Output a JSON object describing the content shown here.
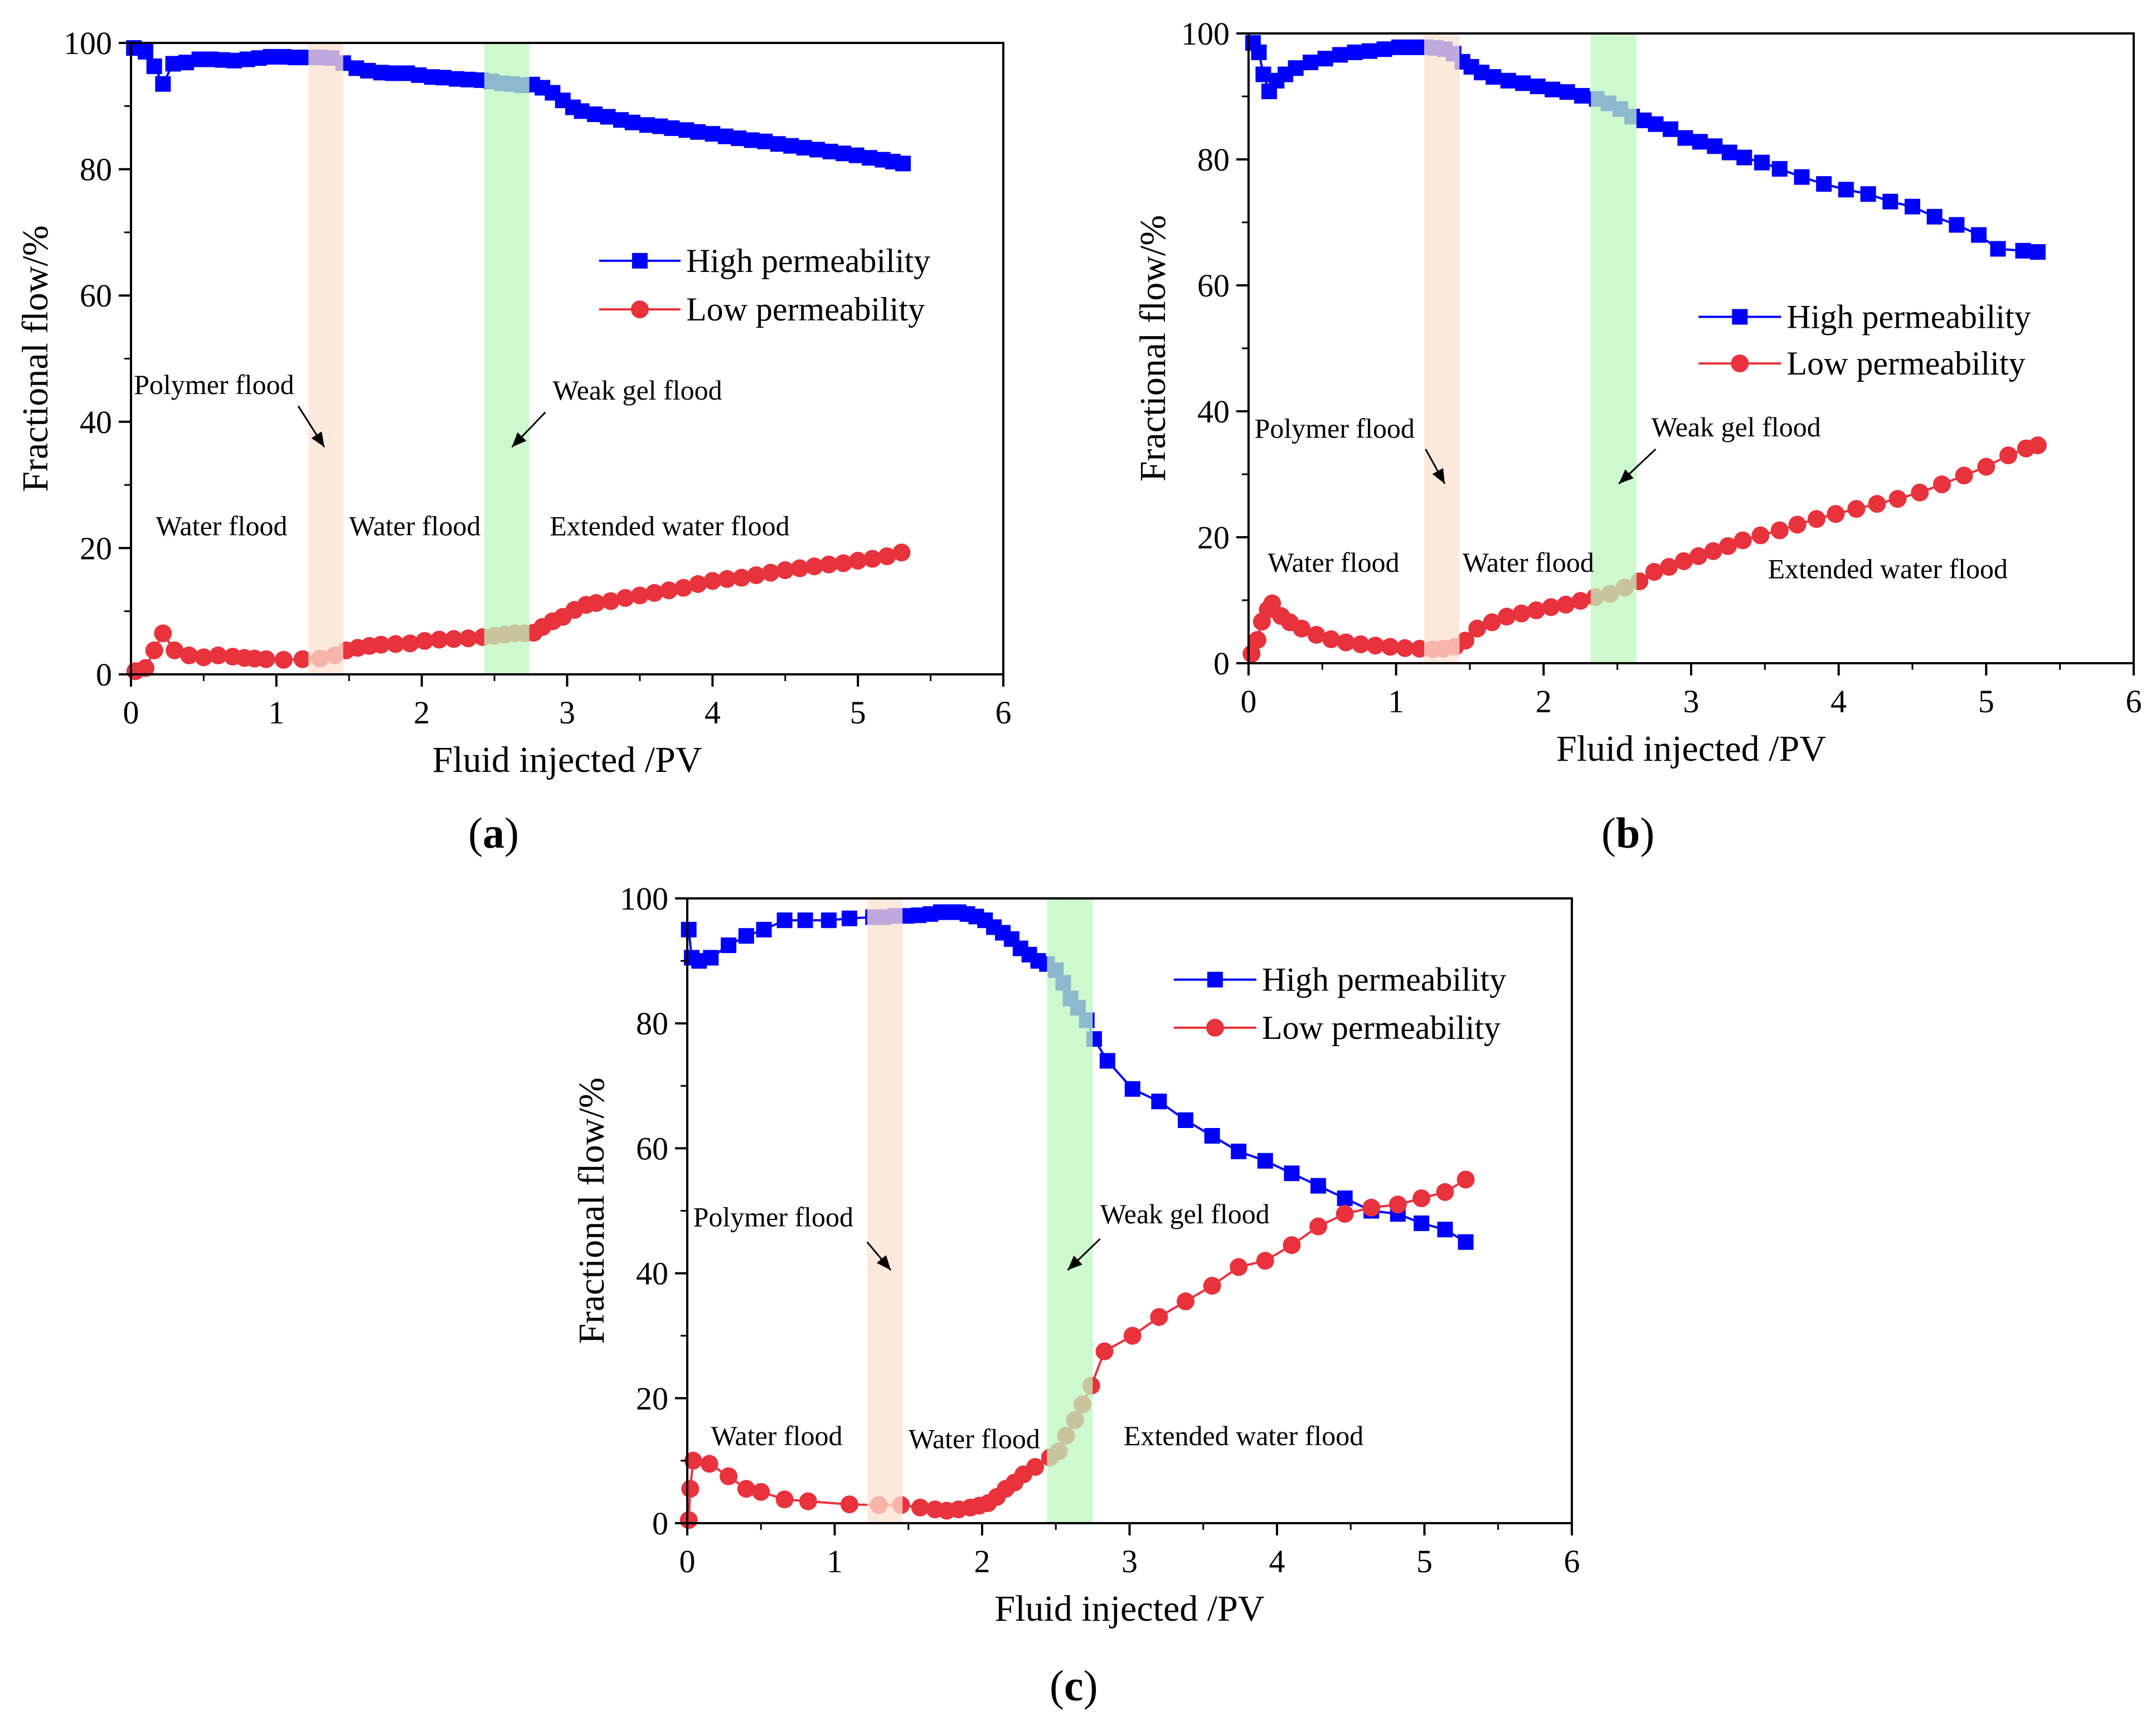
{
  "figure": {
    "colors": {
      "high": "#0000ff",
      "low": "#e8323c",
      "polymer_band": "#fce1d0",
      "gel_band": "#bdf5bd"
    },
    "legend": {
      "high": "High permeability",
      "low": "Low permeability"
    },
    "panels": [
      {
        "caption_letter": "a",
        "annotations": {
          "polymer": "Polymer flood",
          "gel": "Weak gel flood",
          "water1": "Water flood",
          "water2": "Water flood",
          "extended": "Extended water flood"
        }
      },
      {
        "caption_letter": "b",
        "annotations": {
          "polymer": "Polymer flood",
          "gel": "Weak gel flood",
          "water1": "Water flood",
          "water2": "Water flood",
          "extended": "Extended water flood"
        }
      },
      {
        "caption_letter": "c",
        "annotations": {
          "polymer": "Polymer flood",
          "gel": "Weak gel flood",
          "water1": "Water flood",
          "water2": "Water flood",
          "extended": "Extended water flood"
        }
      }
    ]
  },
  "chart_data": [
    {
      "type": "line",
      "xlabel": "Fluid injected /PV",
      "ylabel": "Fractional flow/%",
      "xlim": [
        0,
        6
      ],
      "ylim": [
        0,
        100
      ],
      "xticks": [
        0,
        1,
        2,
        3,
        4,
        5,
        6
      ],
      "yticks": [
        0,
        20,
        40,
        60,
        80,
        100
      ],
      "legend_position": "right",
      "bands": [
        {
          "name": "Polymer flood",
          "x": [
            1.22,
            1.46
          ]
        },
        {
          "name": "Weak gel flood",
          "x": [
            2.43,
            2.74
          ]
        }
      ],
      "series": [
        {
          "name": "High permeability",
          "marker": "square",
          "x": [
            0.02,
            0.1,
            0.16,
            0.22,
            0.29,
            0.38,
            0.47,
            0.55,
            0.63,
            0.71,
            0.8,
            0.88,
            0.96,
            1.05,
            1.13,
            1.21,
            1.3,
            1.38,
            1.46,
            1.55,
            1.63,
            1.72,
            1.8,
            1.9,
            1.98,
            2.07,
            2.15,
            2.24,
            2.32,
            2.41,
            2.48,
            2.55,
            2.62,
            2.69,
            2.76,
            2.83,
            2.9,
            2.97,
            3.04,
            3.1,
            3.19,
            3.28,
            3.37,
            3.45,
            3.55,
            3.64,
            3.72,
            3.82,
            3.9,
            4.0,
            4.09,
            4.18,
            4.27,
            4.36,
            4.45,
            4.54,
            4.63,
            4.72,
            4.81,
            4.9,
            4.99,
            5.08,
            5.17,
            5.24,
            5.31
          ],
          "y": [
            99.2,
            98.6,
            96.3,
            93.5,
            96.7,
            96.9,
            97.4,
            97.4,
            97.3,
            97.2,
            97.4,
            97.6,
            97.8,
            97.8,
            97.7,
            97.7,
            97.7,
            97.6,
            96.8,
            96.0,
            95.6,
            95.3,
            95.2,
            95.2,
            94.9,
            94.6,
            94.5,
            94.3,
            94.2,
            94.1,
            93.9,
            93.6,
            93.5,
            93.3,
            93.4,
            92.9,
            92.1,
            90.9,
            89.8,
            89.2,
            88.7,
            88.3,
            87.8,
            87.4,
            87.0,
            86.8,
            86.5,
            86.2,
            85.9,
            85.6,
            85.2,
            84.9,
            84.6,
            84.4,
            84.0,
            83.7,
            83.4,
            83.1,
            82.8,
            82.5,
            82.2,
            81.8,
            81.5,
            81.2,
            80.9
          ]
        },
        {
          "name": "Low permeability",
          "marker": "circle",
          "x": [
            0.03,
            0.1,
            0.16,
            0.22,
            0.3,
            0.4,
            0.5,
            0.6,
            0.7,
            0.78,
            0.85,
            0.93,
            1.05,
            1.18,
            1.3,
            1.4,
            1.48,
            1.56,
            1.64,
            1.72,
            1.82,
            1.92,
            2.02,
            2.12,
            2.22,
            2.32,
            2.42,
            2.5,
            2.57,
            2.64,
            2.71,
            2.77,
            2.83,
            2.9,
            2.97,
            3.05,
            3.13,
            3.2,
            3.3,
            3.4,
            3.5,
            3.6,
            3.7,
            3.8,
            3.9,
            4.0,
            4.1,
            4.2,
            4.3,
            4.4,
            4.5,
            4.6,
            4.7,
            4.8,
            4.9,
            5.0,
            5.1,
            5.2,
            5.3
          ],
          "y": [
            0.5,
            1.0,
            3.8,
            6.5,
            3.8,
            3.0,
            2.7,
            3.0,
            2.8,
            2.6,
            2.5,
            2.4,
            2.3,
            2.4,
            2.5,
            3.0,
            3.8,
            4.2,
            4.5,
            4.7,
            4.8,
            4.9,
            5.3,
            5.5,
            5.6,
            5.7,
            5.9,
            6.1,
            6.3,
            6.5,
            6.5,
            6.6,
            7.5,
            8.4,
            9.1,
            10.2,
            11.0,
            11.3,
            11.6,
            12.1,
            12.5,
            12.9,
            13.3,
            13.7,
            14.3,
            14.8,
            15.1,
            15.3,
            15.7,
            16.1,
            16.5,
            16.8,
            17.1,
            17.4,
            17.6,
            18.0,
            18.3,
            18.7,
            19.3
          ]
        }
      ]
    },
    {
      "type": "line",
      "xlabel": "Fluid injected /PV",
      "ylabel": "Fractional flow/%",
      "xlim": [
        0,
        6
      ],
      "ylim": [
        0,
        100
      ],
      "xticks": [
        0,
        1,
        2,
        3,
        4,
        5,
        6
      ],
      "yticks": [
        0,
        20,
        40,
        60,
        80,
        100
      ],
      "legend_position": "right",
      "bands": [
        {
          "name": "Polymer flood",
          "x": [
            1.19,
            1.43
          ]
        },
        {
          "name": "Weak gel flood",
          "x": [
            2.32,
            2.63
          ]
        }
      ],
      "series": [
        {
          "name": "High permeability",
          "marker": "square",
          "x": [
            0.03,
            0.07,
            0.1,
            0.14,
            0.19,
            0.25,
            0.32,
            0.42,
            0.52,
            0.62,
            0.72,
            0.82,
            0.92,
            1.02,
            1.12,
            1.2,
            1.27,
            1.33,
            1.39,
            1.45,
            1.51,
            1.58,
            1.66,
            1.76,
            1.86,
            1.96,
            2.06,
            2.16,
            2.26,
            2.36,
            2.44,
            2.52,
            2.6,
            2.68,
            2.76,
            2.86,
            2.96,
            3.06,
            3.16,
            3.26,
            3.36,
            3.48,
            3.6,
            3.75,
            3.9,
            4.05,
            4.2,
            4.35,
            4.5,
            4.65,
            4.8,
            4.95,
            5.08,
            5.25,
            5.35
          ],
          "y": [
            98.5,
            97.0,
            93.5,
            90.8,
            92.5,
            93.5,
            94.5,
            95.4,
            96.0,
            96.6,
            97.0,
            97.2,
            97.5,
            97.8,
            97.8,
            97.8,
            97.7,
            97.5,
            96.8,
            95.5,
            94.7,
            93.8,
            93.1,
            92.5,
            92.1,
            91.6,
            91.1,
            90.7,
            90.1,
            89.6,
            88.9,
            88.0,
            86.8,
            86.2,
            85.6,
            84.8,
            83.4,
            82.8,
            82.1,
            81.1,
            80.3,
            79.5,
            78.5,
            77.2,
            76.1,
            75.2,
            74.5,
            73.3,
            72.5,
            70.9,
            69.6,
            68.0,
            65.8,
            65.5,
            65.3
          ]
        },
        {
          "name": "Low permeability",
          "marker": "circle",
          "x": [
            0.02,
            0.06,
            0.09,
            0.13,
            0.16,
            0.22,
            0.28,
            0.36,
            0.46,
            0.56,
            0.66,
            0.76,
            0.86,
            0.96,
            1.06,
            1.16,
            1.25,
            1.32,
            1.4,
            1.47,
            1.55,
            1.65,
            1.75,
            1.85,
            1.95,
            2.05,
            2.15,
            2.25,
            2.35,
            2.45,
            2.55,
            2.65,
            2.75,
            2.85,
            2.95,
            3.05,
            3.15,
            3.25,
            3.35,
            3.47,
            3.6,
            3.72,
            3.85,
            3.98,
            4.12,
            4.26,
            4.4,
            4.55,
            4.7,
            4.85,
            5.0,
            5.15,
            5.27,
            5.35
          ],
          "y": [
            1.5,
            3.7,
            6.6,
            8.5,
            9.5,
            7.5,
            6.5,
            5.5,
            4.5,
            3.8,
            3.3,
            3.0,
            2.8,
            2.6,
            2.4,
            2.3,
            2.2,
            2.3,
            2.6,
            3.6,
            5.5,
            6.5,
            7.4,
            7.9,
            8.4,
            8.9,
            9.3,
            9.9,
            10.5,
            11.0,
            12.0,
            13.0,
            14.5,
            15.3,
            16.2,
            17.0,
            17.8,
            18.6,
            19.5,
            20.3,
            21.1,
            22.0,
            22.9,
            23.7,
            24.5,
            25.3,
            26.1,
            27.1,
            28.4,
            29.8,
            31.2,
            33.0,
            34.1,
            34.6
          ]
        }
      ]
    },
    {
      "type": "line",
      "xlabel": "Fluid injected /PV",
      "ylabel": "Fractional flow/%",
      "xlim": [
        0,
        6
      ],
      "ylim": [
        0,
        100
      ],
      "xticks": [
        0,
        1,
        2,
        3,
        4,
        5,
        6
      ],
      "yticks": [
        0,
        20,
        40,
        60,
        80,
        100
      ],
      "legend_position": "top-right",
      "bands": [
        {
          "name": "Polymer flood",
          "x": [
            1.22,
            1.46
          ]
        },
        {
          "name": "Weak gel flood",
          "x": [
            2.44,
            2.75
          ]
        }
      ],
      "series": [
        {
          "name": "High permeability",
          "marker": "square",
          "x": [
            0.01,
            0.03,
            0.08,
            0.16,
            0.28,
            0.4,
            0.52,
            0.66,
            0.8,
            0.96,
            1.1,
            1.26,
            1.33,
            1.41,
            1.49,
            1.57,
            1.65,
            1.72,
            1.78,
            1.84,
            1.9,
            1.96,
            2.02,
            2.08,
            2.14,
            2.2,
            2.26,
            2.32,
            2.38,
            2.44,
            2.5,
            2.55,
            2.6,
            2.65,
            2.71,
            2.76,
            2.85,
            3.02,
            3.2,
            3.38,
            3.56,
            3.74,
            3.92,
            4.1,
            4.28,
            4.46,
            4.64,
            4.82,
            4.98,
            5.14,
            5.28
          ],
          "y": [
            95.0,
            90.5,
            90.0,
            90.5,
            92.5,
            94.0,
            95.0,
            96.5,
            96.5,
            96.5,
            96.8,
            97.0,
            97.0,
            97.2,
            97.2,
            97.3,
            97.5,
            97.8,
            97.8,
            97.8,
            97.5,
            97.1,
            96.5,
            95.4,
            94.5,
            93.5,
            92.0,
            91.0,
            90.0,
            89.5,
            88.5,
            86.5,
            84.0,
            82.5,
            80.5,
            77.5,
            74.0,
            69.5,
            67.5,
            64.5,
            62.0,
            59.5,
            58.0,
            56.0,
            54.0,
            52.0,
            50.0,
            49.5,
            48.0,
            47.0,
            45.0
          ]
        },
        {
          "name": "Low permeability",
          "marker": "circle",
          "x": [
            0.01,
            0.02,
            0.04,
            0.15,
            0.28,
            0.4,
            0.5,
            0.66,
            0.82,
            1.1,
            1.3,
            1.45,
            1.58,
            1.68,
            1.76,
            1.84,
            1.92,
            1.98,
            2.04,
            2.1,
            2.16,
            2.22,
            2.28,
            2.36,
            2.46,
            2.52,
            2.57,
            2.63,
            2.68,
            2.74,
            2.83,
            3.02,
            3.2,
            3.38,
            3.56,
            3.74,
            3.92,
            4.1,
            4.28,
            4.46,
            4.64,
            4.82,
            4.98,
            5.14,
            5.28
          ],
          "y": [
            0.5,
            5.5,
            10.0,
            9.5,
            7.5,
            5.5,
            5.0,
            3.8,
            3.5,
            3.0,
            2.9,
            2.9,
            2.5,
            2.2,
            2.0,
            2.2,
            2.5,
            2.8,
            3.2,
            4.2,
            5.5,
            6.5,
            7.8,
            9.0,
            10.5,
            11.5,
            14.0,
            16.5,
            19.0,
            22.0,
            27.5,
            30.0,
            33.0,
            35.5,
            38.0,
            41.0,
            42.0,
            44.5,
            47.5,
            49.5,
            50.5,
            51.0,
            52.0,
            53.0,
            55.0
          ]
        }
      ]
    }
  ]
}
